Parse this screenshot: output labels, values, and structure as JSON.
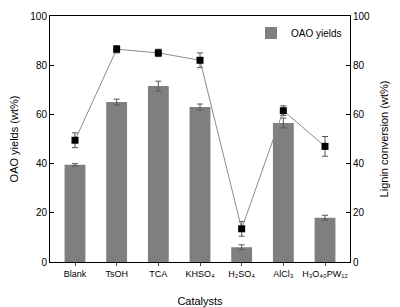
{
  "chart_data": {
    "type": "bar",
    "categories": [
      "Blank",
      "TsOH",
      "TCA",
      "KHSO₄",
      "H₂SO₄",
      "AlCl₃",
      "H₃O₄₀PW₁₂"
    ],
    "x_label": "Catalysts",
    "y_label": "OAO yields (wt%)",
    "y2_label": "Lignin conversion (wt%)",
    "ylim": [
      0,
      100
    ],
    "yticks": [
      0,
      20,
      40,
      60,
      80,
      100
    ],
    "y2lim": [
      0,
      100
    ],
    "y2ticks": [
      0,
      20,
      40,
      60,
      80,
      100
    ],
    "legend": "upper right",
    "grid": false,
    "series": [
      {
        "name": "OAO yields",
        "type": "bar",
        "color": "#7f7f7f",
        "values": [
          39.5,
          65,
          71.5,
          63,
          6,
          56.5,
          18
        ],
        "errors": [
          0.5,
          1.2,
          2,
          1.2,
          1,
          2,
          1
        ]
      },
      {
        "type": "line",
        "axis": "y2",
        "color": "#8c8c8c",
        "marker": "square",
        "values": [
          49.5,
          86.5,
          85,
          82,
          13.5,
          61.5,
          47
        ],
        "errors": [
          3,
          1.5,
          1.5,
          3,
          3,
          2,
          4
        ]
      }
    ]
  }
}
